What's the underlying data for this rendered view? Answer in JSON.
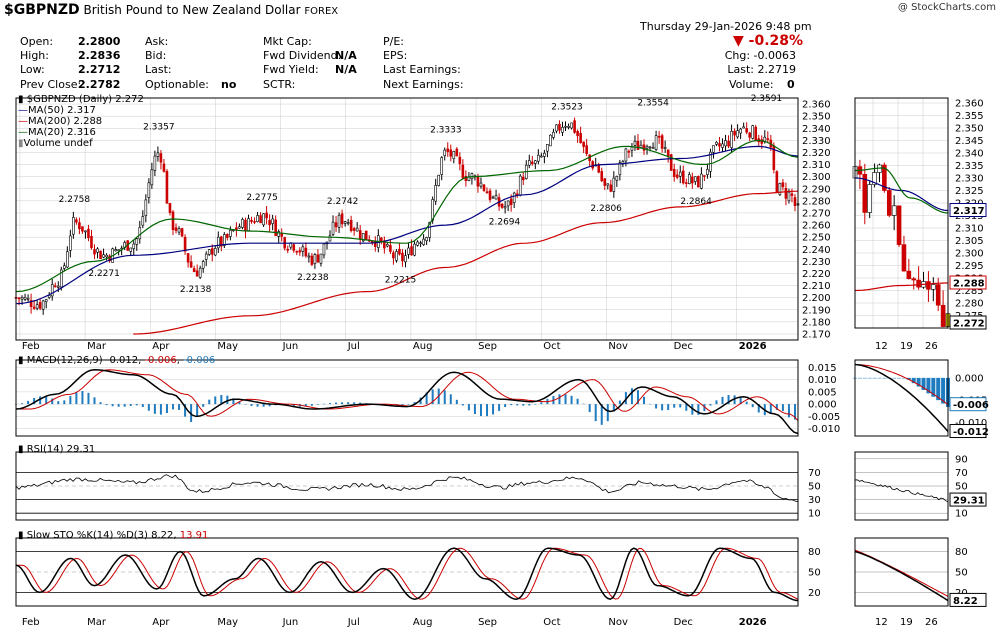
{
  "header": {
    "symbol": "$GBPNZD",
    "name": "British Pound to New Zealand Dollar",
    "exchange": "FOREX",
    "watermark": "@ StockCharts.com",
    "datetime": "Thursday  29-Jan-2026  9:48 pm",
    "change_pct": "-0.28%",
    "chg": "Chg: -0.0063",
    "last": "Last: 2.2719",
    "volume_label": "Volume:",
    "volume": "0"
  },
  "quote_fields": {
    "open_label": "Open:",
    "open": "2.2800",
    "high_label": "High:",
    "high": "2.2836",
    "low_label": "Low:",
    "low": "2.2712",
    "prev_label": "Prev Close:",
    "prev": "2.2782",
    "ask": "Ask:",
    "bid": "Bid:",
    "last": "Last:",
    "optionable_label": "Optionable:",
    "optionable": "no",
    "mktcap": "Mkt Cap:",
    "fwddiv_label": "Fwd Dividend:",
    "fwddiv": "N/A",
    "fwdyield_label": "Fwd Yield:",
    "fwdyield": "N/A",
    "sctr": "SCTR:",
    "pe": "P/E:",
    "eps": "EPS:",
    "last_earn": "Last Earnings:",
    "next_earn": "Next Earnings:"
  },
  "legend": {
    "main": "$GBPNZD (Daily) 2.272",
    "ma50": "MA(50) 2.317",
    "ma200": "MA(200) 2.288",
    "ma20": "MA(20) 2.316",
    "volume": "Volume undef"
  },
  "colors": {
    "candle_up": "#000000",
    "candle_down": "#cc0000",
    "ma50": "#000080",
    "ma200": "#cc0000",
    "ma20": "#006600",
    "macd_hist": "#1f7bbf",
    "grid": "#cccccc"
  },
  "chart_data": {
    "type": "candlestick",
    "price_axis_ticks": [
      "2.170",
      "2.180",
      "2.190",
      "2.200",
      "2.210",
      "2.220",
      "2.230",
      "2.240",
      "2.250",
      "2.260",
      "2.270",
      "2.280",
      "2.290",
      "2.300",
      "2.310",
      "2.320",
      "2.330",
      "2.340",
      "2.350",
      "2.360"
    ],
    "price_ylim": [
      2.165,
      2.365
    ],
    "month_labels": [
      "Feb",
      "Mar",
      "Apr",
      "May",
      "Jun",
      "Jul",
      "Aug",
      "Sep",
      "Oct",
      "Nov",
      "Dec",
      "2026"
    ],
    "annotations": [
      {
        "label": "2.2758",
        "t": 0.075,
        "v": 2.2758,
        "pos": "above"
      },
      {
        "label": "2.2271",
        "t": 0.113,
        "v": 2.2271,
        "pos": "below"
      },
      {
        "label": "2.3357",
        "t": 0.183,
        "v": 2.3357,
        "pos": "above"
      },
      {
        "label": "2.2138",
        "t": 0.23,
        "v": 2.2138,
        "pos": "below"
      },
      {
        "label": "2.2775",
        "t": 0.315,
        "v": 2.2775,
        "pos": "above"
      },
      {
        "label": "2.2238",
        "t": 0.38,
        "v": 2.2238,
        "pos": "below"
      },
      {
        "label": "2.2742",
        "t": 0.418,
        "v": 2.2742,
        "pos": "above"
      },
      {
        "label": "2.2215",
        "t": 0.492,
        "v": 2.2215,
        "pos": "below"
      },
      {
        "label": "2.3333",
        "t": 0.55,
        "v": 2.3333,
        "pos": "above"
      },
      {
        "label": "2.2694",
        "t": 0.625,
        "v": 2.2694,
        "pos": "below"
      },
      {
        "label": "2.3523",
        "t": 0.705,
        "v": 2.3523,
        "pos": "above"
      },
      {
        "label": "2.2806",
        "t": 0.755,
        "v": 2.2806,
        "pos": "below"
      },
      {
        "label": "2.3554",
        "t": 0.815,
        "v": 2.3554,
        "pos": "above"
      },
      {
        "label": "2.2864",
        "t": 0.87,
        "v": 2.2864,
        "pos": "below"
      },
      {
        "label": "2.3591",
        "t": 0.96,
        "v": 2.3591,
        "pos": "above"
      }
    ],
    "price_anchors": [
      [
        0,
        2.2
      ],
      [
        0.03,
        2.195
      ],
      [
        0.055,
        2.215
      ],
      [
        0.075,
        2.262
      ],
      [
        0.113,
        2.235
      ],
      [
        0.15,
        2.245
      ],
      [
        0.183,
        2.32
      ],
      [
        0.2,
        2.26
      ],
      [
        0.23,
        2.222
      ],
      [
        0.26,
        2.245
      ],
      [
        0.29,
        2.26
      ],
      [
        0.315,
        2.268
      ],
      [
        0.35,
        2.245
      ],
      [
        0.38,
        2.232
      ],
      [
        0.418,
        2.265
      ],
      [
        0.45,
        2.25
      ],
      [
        0.492,
        2.232
      ],
      [
        0.52,
        2.25
      ],
      [
        0.55,
        2.32
      ],
      [
        0.58,
        2.3
      ],
      [
        0.625,
        2.275
      ],
      [
        0.66,
        2.31
      ],
      [
        0.705,
        2.345
      ],
      [
        0.74,
        2.31
      ],
      [
        0.755,
        2.29
      ],
      [
        0.79,
        2.325
      ],
      [
        0.815,
        2.33
      ],
      [
        0.85,
        2.3
      ],
      [
        0.87,
        2.295
      ],
      [
        0.9,
        2.325
      ],
      [
        0.93,
        2.34
      ],
      [
        0.96,
        2.33
      ],
      [
        0.975,
        2.29
      ],
      [
        0.99,
        2.285
      ],
      [
        1.0,
        2.272
      ]
    ],
    "ma50_anchors": [
      [
        0,
        2.195
      ],
      [
        0.15,
        2.235
      ],
      [
        0.3,
        2.245
      ],
      [
        0.45,
        2.245
      ],
      [
        0.55,
        2.26
      ],
      [
        0.65,
        2.285
      ],
      [
        0.75,
        2.31
      ],
      [
        0.85,
        2.315
      ],
      [
        0.95,
        2.325
      ],
      [
        1.0,
        2.317
      ]
    ],
    "ma200_anchors": [
      [
        0.15,
        2.17
      ],
      [
        0.3,
        2.185
      ],
      [
        0.45,
        2.205
      ],
      [
        0.55,
        2.225
      ],
      [
        0.65,
        2.245
      ],
      [
        0.75,
        2.262
      ],
      [
        0.85,
        2.275
      ],
      [
        0.95,
        2.286
      ],
      [
        1.0,
        2.288
      ]
    ],
    "ma20_anchors": [
      [
        0,
        2.205
      ],
      [
        0.1,
        2.23
      ],
      [
        0.2,
        2.265
      ],
      [
        0.3,
        2.255
      ],
      [
        0.4,
        2.25
      ],
      [
        0.5,
        2.245
      ],
      [
        0.58,
        2.3
      ],
      [
        0.68,
        2.305
      ],
      [
        0.78,
        2.325
      ],
      [
        0.88,
        2.31
      ],
      [
        0.95,
        2.33
      ],
      [
        1.0,
        2.316
      ]
    ],
    "inset_price_ticks": [
      "2.275",
      "2.280",
      "2.285",
      "2.290",
      "2.295",
      "2.300",
      "2.305",
      "2.310",
      "2.315",
      "2.320",
      "2.325",
      "2.330",
      "2.335",
      "2.340",
      "2.345",
      "2.350",
      "2.355",
      "2.360"
    ],
    "inset_ylim": [
      2.27,
      2.362
    ],
    "inset_x_labels": [
      "12",
      "19",
      "26"
    ],
    "inset_price_anchors": [
      [
        0,
        2.33
      ],
      [
        0.12,
        2.32
      ],
      [
        0.25,
        2.335
      ],
      [
        0.4,
        2.315
      ],
      [
        0.55,
        2.29
      ],
      [
        0.68,
        2.285
      ],
      [
        0.8,
        2.29
      ],
      [
        0.9,
        2.28
      ],
      [
        1.0,
        2.272
      ]
    ],
    "inset_ma50": [
      [
        0,
        2.33
      ],
      [
        0.5,
        2.325
      ],
      [
        1.0,
        2.317
      ]
    ],
    "inset_ma20": [
      [
        0,
        2.333
      ],
      [
        0.3,
        2.334
      ],
      [
        0.6,
        2.322
      ],
      [
        1.0,
        2.316
      ]
    ],
    "inset_ma200": [
      [
        0,
        2.285
      ],
      [
        0.5,
        2.287
      ],
      [
        1.0,
        2.288
      ]
    ],
    "inset_markers": {
      "last": "2.272",
      "ma50": "2.317",
      "ma200": "2.288"
    },
    "macd": {
      "legend_prefix": "MACD(12,26,9)",
      "macd": "-0.012",
      "signal": "-0.006",
      "hist": "-0.006",
      "ticks": [
        "0.015",
        "0.010",
        "0.005",
        "0.000",
        "-0.005",
        "-0.010"
      ],
      "ylim": [
        -0.013,
        0.018
      ],
      "anchors": [
        [
          0,
          -0.002
        ],
        [
          0.05,
          0.004
        ],
        [
          0.1,
          0.014
        ],
        [
          0.15,
          0.012
        ],
        [
          0.2,
          0.004
        ],
        [
          0.23,
          -0.005
        ],
        [
          0.28,
          0.002
        ],
        [
          0.33,
          0.0
        ],
        [
          0.38,
          -0.002
        ],
        [
          0.45,
          0.0
        ],
        [
          0.5,
          -0.001
        ],
        [
          0.56,
          0.013
        ],
        [
          0.62,
          0.002
        ],
        [
          0.66,
          0.001
        ],
        [
          0.72,
          0.01
        ],
        [
          0.76,
          -0.003
        ],
        [
          0.8,
          0.007
        ],
        [
          0.84,
          0.003
        ],
        [
          0.88,
          -0.004
        ],
        [
          0.93,
          0.003
        ],
        [
          0.97,
          -0.004
        ],
        [
          1.0,
          -0.012
        ]
      ],
      "inset_ticks": [
        "0.000",
        "-0.005",
        "-0.010"
      ],
      "inset_ylim": [
        -0.013,
        0.004
      ],
      "inset_markers": {
        "hist": "-0.006",
        "macd": "-0.012"
      }
    },
    "rsi": {
      "legend": "RSI(14) 29.31",
      "ticks": [
        "70",
        "50",
        "30",
        "10"
      ],
      "ylim": [
        0,
        100
      ],
      "anchors": [
        [
          0,
          48
        ],
        [
          0.08,
          60
        ],
        [
          0.15,
          55
        ],
        [
          0.2,
          65
        ],
        [
          0.23,
          42
        ],
        [
          0.3,
          55
        ],
        [
          0.38,
          45
        ],
        [
          0.45,
          52
        ],
        [
          0.5,
          45
        ],
        [
          0.56,
          62
        ],
        [
          0.62,
          48
        ],
        [
          0.66,
          55
        ],
        [
          0.72,
          62
        ],
        [
          0.76,
          42
        ],
        [
          0.8,
          55
        ],
        [
          0.84,
          50
        ],
        [
          0.88,
          45
        ],
        [
          0.93,
          58
        ],
        [
          0.96,
          48
        ],
        [
          0.98,
          32
        ],
        [
          1.0,
          29
        ]
      ],
      "inset_ticks": [
        "90",
        "70",
        "50",
        "30",
        "10"
      ],
      "inset_marker": "29.31"
    },
    "sto": {
      "legend_prefix": "Slow STO %K(14) %D(3)",
      "k": "8.22",
      "d": "13.91",
      "ticks": [
        "80",
        "50",
        "20"
      ],
      "ylim": [
        0,
        100
      ],
      "anchors": [
        [
          0,
          60
        ],
        [
          0.03,
          20
        ],
        [
          0.07,
          70
        ],
        [
          0.1,
          30
        ],
        [
          0.14,
          75
        ],
        [
          0.18,
          25
        ],
        [
          0.21,
          80
        ],
        [
          0.24,
          15
        ],
        [
          0.28,
          40
        ],
        [
          0.31,
          70
        ],
        [
          0.35,
          20
        ],
        [
          0.39,
          65
        ],
        [
          0.43,
          20
        ],
        [
          0.47,
          55
        ],
        [
          0.51,
          10
        ],
        [
          0.56,
          85
        ],
        [
          0.6,
          40
        ],
        [
          0.64,
          10
        ],
        [
          0.68,
          85
        ],
        [
          0.72,
          75
        ],
        [
          0.76,
          10
        ],
        [
          0.79,
          85
        ],
        [
          0.82,
          30
        ],
        [
          0.86,
          15
        ],
        [
          0.9,
          85
        ],
        [
          0.94,
          70
        ],
        [
          0.97,
          20
        ],
        [
          1.0,
          8
        ]
      ],
      "inset_ticks": [
        "80",
        "50",
        "20"
      ],
      "inset_marker": "8.22"
    }
  }
}
